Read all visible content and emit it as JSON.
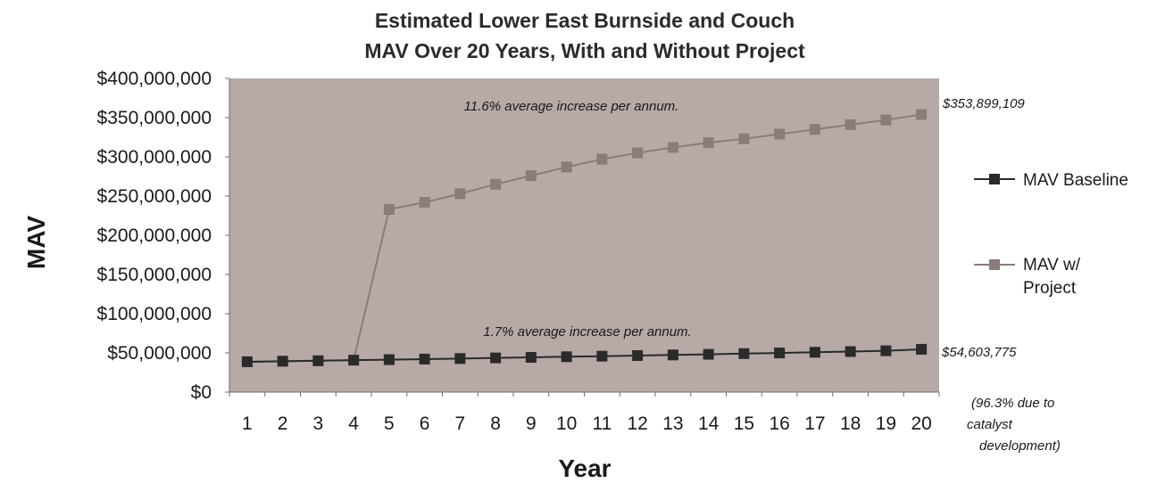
{
  "chart_data": {
    "type": "line",
    "title": [
      "Estimated Lower East Burnside and Couch",
      "MAV Over 20 Years, With and Without Project"
    ],
    "xlabel": "Year",
    "ylabel": "MAV",
    "categories": [
      "1",
      "2",
      "3",
      "4",
      "5",
      "6",
      "7",
      "8",
      "9",
      "10",
      "11",
      "12",
      "13",
      "14",
      "15",
      "16",
      "17",
      "18",
      "19",
      "20"
    ],
    "ylim": [
      0,
      400000000
    ],
    "yticks": [
      "$0",
      "$50,000,000",
      "$100,000,000",
      "$150,000,000",
      "$200,000,000",
      "$250,000,000",
      "$300,000,000",
      "$350,000,000",
      "$400,000,000"
    ],
    "grid": false,
    "legend_position": "right",
    "plot_background": "#b6a9a6",
    "series": [
      {
        "name": "MAV Baseline",
        "color": "#2a2a2a",
        "values": [
          38700000,
          39400000,
          40000000,
          40700000,
          41400000,
          42100000,
          42800000,
          43600000,
          44300000,
          45100000,
          45800000,
          46600000,
          47400000,
          48200000,
          49100000,
          49900000,
          50800000,
          51700000,
          52700000,
          54603775
        ]
      },
      {
        "name": "MAV w/ Project",
        "legend_lines": [
          "MAV w/",
          "Project"
        ],
        "color": "#8a7c79",
        "values": [
          38700000,
          39400000,
          40000000,
          40700000,
          233000000,
          242000000,
          253000000,
          265000000,
          276000000,
          287000000,
          297000000,
          305000000,
          312000000,
          318000000,
          323000000,
          329000000,
          335000000,
          341000000,
          347000000,
          353899109
        ]
      }
    ],
    "annotations": {
      "project_growth": "11.6% average increase per annum.",
      "baseline_growth": "1.7% average increase per annum.",
      "project_end_value": "$353,899,109",
      "baseline_end_value": "$54,603,775",
      "footnote": [
        "(96.3% due to",
        "catalyst",
        "development)"
      ]
    }
  }
}
